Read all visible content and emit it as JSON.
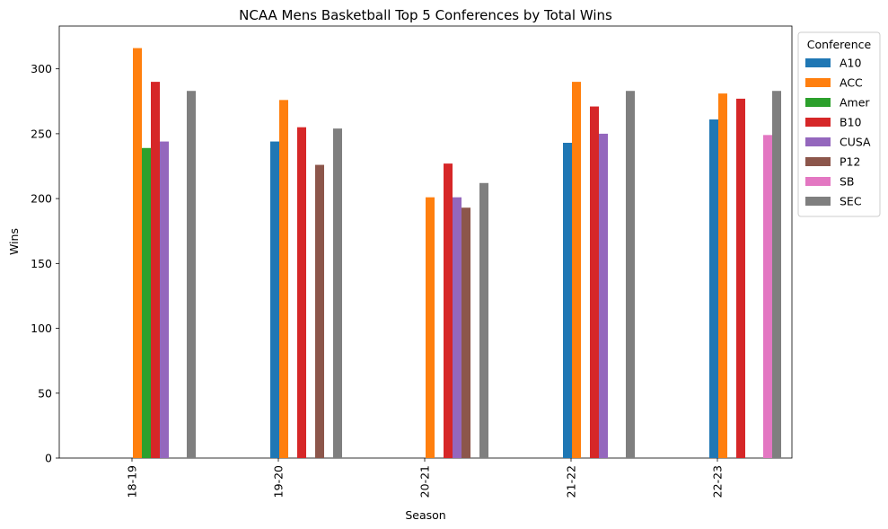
{
  "chart_data": {
    "type": "bar",
    "title": "NCAA Mens Basketball Top 5 Conferences by Total Wins",
    "xlabel": "Season",
    "ylabel": "Wins",
    "ylim": [
      0,
      333
    ],
    "yticks": [
      0,
      50,
      100,
      150,
      200,
      250,
      300
    ],
    "categories": [
      "18-19",
      "19-20",
      "20-21",
      "21-22",
      "22-23"
    ],
    "legend_title": "Conference",
    "legend_position": "outside top-right",
    "grid": false,
    "series": [
      {
        "name": "A10",
        "color": "#1f77b4",
        "values": [
          null,
          244,
          null,
          243,
          261
        ]
      },
      {
        "name": "ACC",
        "color": "#ff7f0e",
        "values": [
          316,
          276,
          201,
          290,
          281
        ]
      },
      {
        "name": "Amer",
        "color": "#2ca02c",
        "values": [
          239,
          null,
          null,
          null,
          null
        ]
      },
      {
        "name": "B10",
        "color": "#d62728",
        "values": [
          290,
          255,
          227,
          271,
          277
        ]
      },
      {
        "name": "CUSA",
        "color": "#9467bd",
        "values": [
          244,
          null,
          201,
          250,
          null
        ]
      },
      {
        "name": "P12",
        "color": "#8c564b",
        "values": [
          null,
          226,
          193,
          null,
          null
        ]
      },
      {
        "name": "SB",
        "color": "#e377c2",
        "values": [
          null,
          null,
          null,
          null,
          249
        ]
      },
      {
        "name": "SEC",
        "color": "#7f7f7f",
        "values": [
          283,
          254,
          212,
          283,
          283
        ]
      }
    ]
  }
}
